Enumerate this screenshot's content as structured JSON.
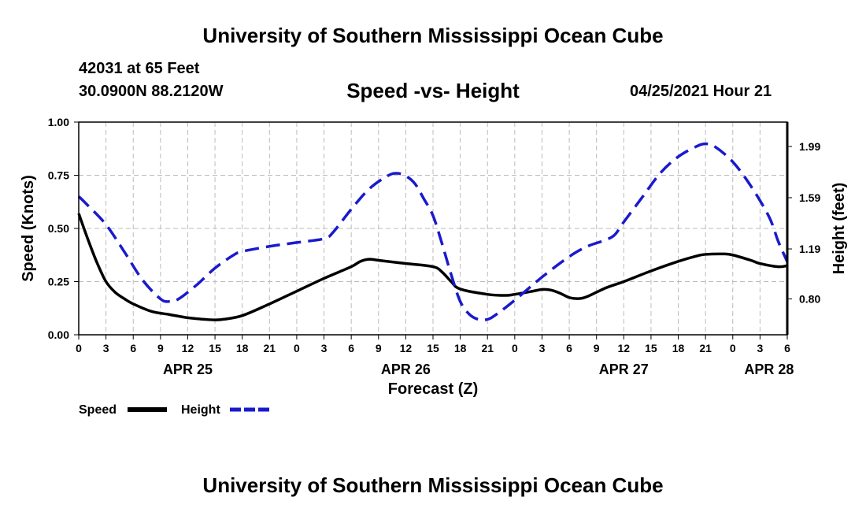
{
  "header": {
    "title": "University of Southern Mississippi Ocean Cube",
    "station": "42031 at 65 Feet",
    "coords": "30.0900N  88.2120W",
    "subtitle": "Speed -vs- Height",
    "datetime": "04/25/2021 Hour 21",
    "footer_title": "University of Southern Mississippi Ocean Cube"
  },
  "colors": {
    "speed": "#000000",
    "height": "#1a1acc",
    "grid": "#bbbbbb"
  },
  "chart_data": {
    "type": "line",
    "title": "Speed -vs- Height",
    "xlabel": "Forecast (Z)",
    "ylabel": "Speed (Knots)",
    "y2label": "Height (feet)",
    "grid": true,
    "xlim": [
      0,
      78
    ],
    "ylim": [
      0,
      1.0
    ],
    "y2lim": [
      0.52,
      2.18
    ],
    "x_ticks": [
      0,
      3,
      6,
      9,
      12,
      15,
      18,
      21,
      24,
      27,
      30,
      33,
      36,
      39,
      42,
      45,
      48,
      51,
      54,
      57,
      60,
      63,
      66,
      69,
      72,
      75,
      78
    ],
    "x_tick_labels": [
      "0",
      "3",
      "6",
      "9",
      "12",
      "15",
      "18",
      "21",
      "0",
      "3",
      "6",
      "9",
      "12",
      "15",
      "18",
      "21",
      "0",
      "3",
      "6",
      "9",
      "12",
      "15",
      "18",
      "21",
      "0",
      "3",
      "6"
    ],
    "date_labels": [
      {
        "x": 12,
        "label": "APR 25"
      },
      {
        "x": 36,
        "label": "APR 26"
      },
      {
        "x": 60,
        "label": "APR 27"
      },
      {
        "x": 76,
        "label": "APR 28"
      }
    ],
    "y_ticks": [
      0,
      0.25,
      0.5,
      0.75,
      1.0
    ],
    "y_tick_labels": [
      "0.00",
      "0.25",
      "0.50",
      "0.75",
      "1.00"
    ],
    "y2_ticks": [
      0.8,
      1.19,
      1.59,
      1.99
    ],
    "y2_tick_labels": [
      "0.80",
      "1.19",
      "1.59",
      "1.99"
    ],
    "series": [
      {
        "name": "Speed",
        "axis": "left",
        "style": "solid",
        "points": [
          [
            0,
            0.57
          ],
          [
            1,
            0.45
          ],
          [
            2,
            0.34
          ],
          [
            3,
            0.25
          ],
          [
            4,
            0.2
          ],
          [
            5,
            0.17
          ],
          [
            6,
            0.145
          ],
          [
            8,
            0.11
          ],
          [
            10,
            0.095
          ],
          [
            12,
            0.08
          ],
          [
            14,
            0.072
          ],
          [
            15,
            0.07
          ],
          [
            16,
            0.073
          ],
          [
            18,
            0.09
          ],
          [
            21,
            0.145
          ],
          [
            24,
            0.205
          ],
          [
            27,
            0.265
          ],
          [
            30,
            0.32
          ],
          [
            31,
            0.345
          ],
          [
            32,
            0.355
          ],
          [
            33,
            0.35
          ],
          [
            36,
            0.335
          ],
          [
            39,
            0.32
          ],
          [
            40,
            0.295
          ],
          [
            41,
            0.25
          ],
          [
            42,
            0.215
          ],
          [
            45,
            0.19
          ],
          [
            47,
            0.185
          ],
          [
            48,
            0.19
          ],
          [
            50,
            0.205
          ],
          [
            51,
            0.213
          ],
          [
            52,
            0.21
          ],
          [
            53,
            0.195
          ],
          [
            54,
            0.175
          ],
          [
            55,
            0.17
          ],
          [
            56,
            0.18
          ],
          [
            58,
            0.22
          ],
          [
            60,
            0.25
          ],
          [
            63,
            0.3
          ],
          [
            66,
            0.345
          ],
          [
            68,
            0.37
          ],
          [
            69,
            0.378
          ],
          [
            71,
            0.38
          ],
          [
            72,
            0.375
          ],
          [
            74,
            0.35
          ],
          [
            75,
            0.335
          ],
          [
            77,
            0.32
          ],
          [
            78,
            0.325
          ]
        ]
      },
      {
        "name": "Height",
        "axis": "right",
        "style": "dashed",
        "points": [
          [
            0,
            1.6
          ],
          [
            1,
            1.53
          ],
          [
            3,
            1.38
          ],
          [
            5,
            1.17
          ],
          [
            7,
            0.95
          ],
          [
            9,
            0.8
          ],
          [
            10,
            0.78
          ],
          [
            11,
            0.8
          ],
          [
            13,
            0.91
          ],
          [
            15,
            1.04
          ],
          [
            17,
            1.14
          ],
          [
            18,
            1.17
          ],
          [
            21,
            1.21
          ],
          [
            24,
            1.24
          ],
          [
            27,
            1.27
          ],
          [
            28,
            1.32
          ],
          [
            30,
            1.5
          ],
          [
            32,
            1.66
          ],
          [
            34,
            1.76
          ],
          [
            35,
            1.78
          ],
          [
            36,
            1.76
          ],
          [
            37,
            1.7
          ],
          [
            38,
            1.58
          ],
          [
            39,
            1.45
          ],
          [
            40,
            1.23
          ],
          [
            41,
            0.99
          ],
          [
            42,
            0.78
          ],
          [
            43,
            0.68
          ],
          [
            44,
            0.64
          ],
          [
            45,
            0.64
          ],
          [
            46,
            0.68
          ],
          [
            48,
            0.79
          ],
          [
            51,
            0.97
          ],
          [
            54,
            1.13
          ],
          [
            56,
            1.21
          ],
          [
            58,
            1.26
          ],
          [
            59,
            1.3
          ],
          [
            60,
            1.4
          ],
          [
            62,
            1.59
          ],
          [
            64,
            1.78
          ],
          [
            66,
            1.91
          ],
          [
            68,
            1.99
          ],
          [
            69,
            2.01
          ],
          [
            70,
            1.99
          ],
          [
            72,
            1.87
          ],
          [
            74,
            1.68
          ],
          [
            76,
            1.44
          ],
          [
            77,
            1.25
          ],
          [
            78,
            1.09
          ]
        ]
      }
    ],
    "legend": [
      {
        "name": "Speed",
        "style": "solid"
      },
      {
        "name": "Height",
        "style": "dashed"
      }
    ],
    "legend_position": "bottom-left"
  }
}
